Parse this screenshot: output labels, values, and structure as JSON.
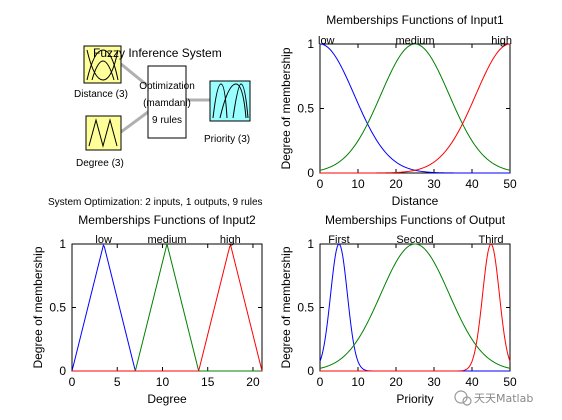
{
  "fis": {
    "title": "Fuzzy Inference System",
    "input1_label": "Distance (3)",
    "input2_label": "Degree (3)",
    "engine_line1": "Optimization",
    "engine_line2": "(mamdani)",
    "engine_line3": "9 rules",
    "output_label": "Priority (3)",
    "summary": "System Optimization: 2 inputs, 1 outputs, 9 rules",
    "colors": {
      "input_box": "#ffff99",
      "engine_box": "#ffffff",
      "output_box": "#99ffff"
    }
  },
  "watermark": "天天Matlab",
  "chart_data": [
    {
      "type": "line",
      "title": "Memberships Functions of Input1",
      "xlabel": "Distance",
      "ylabel": "Degree of membership",
      "xlim": [
        0,
        50
      ],
      "ylim": [
        0,
        1
      ],
      "xticks": [
        0,
        10,
        20,
        30,
        40,
        50
      ],
      "yticks": [
        0,
        0.5,
        1
      ],
      "grid": false,
      "series": [
        {
          "name": "low",
          "color": "#0000ff",
          "mf": "gauss",
          "center": 0,
          "sigma": 9
        },
        {
          "name": "medium",
          "color": "#008000",
          "mf": "gauss",
          "center": 25,
          "sigma": 9
        },
        {
          "name": "high",
          "color": "#ff0000",
          "mf": "gauss",
          "center": 50,
          "sigma": 9
        }
      ]
    },
    {
      "type": "line",
      "title": "Memberships Functions of Input2",
      "xlabel": "Degree",
      "ylabel": "Degree of membership",
      "xlim": [
        0,
        21
      ],
      "ylim": [
        0,
        1
      ],
      "xticks": [
        0,
        5,
        10,
        15,
        20
      ],
      "yticks": [
        0,
        0.5,
        1
      ],
      "grid": false,
      "series": [
        {
          "name": "low",
          "color": "#0000ff",
          "mf": "tri",
          "params": [
            0,
            3.5,
            7
          ]
        },
        {
          "name": "medium",
          "color": "#008000",
          "mf": "tri",
          "params": [
            7,
            10.5,
            14
          ]
        },
        {
          "name": "high",
          "color": "#ff0000",
          "mf": "tri",
          "params": [
            14,
            17.5,
            21
          ]
        }
      ]
    },
    {
      "type": "line",
      "title": "Memberships Functions of Output",
      "xlabel": "Priority",
      "ylabel": "Degree of membership",
      "xlim": [
        0,
        50
      ],
      "ylim": [
        0,
        1
      ],
      "xticks": [
        0,
        10,
        20,
        30,
        40,
        50
      ],
      "yticks": [
        0,
        0.5,
        1
      ],
      "grid": false,
      "series": [
        {
          "name": "First",
          "color": "#0000ff",
          "mf": "gauss",
          "center": 5,
          "sigma": 2.2
        },
        {
          "name": "Second",
          "color": "#008000",
          "mf": "gauss",
          "center": 25,
          "sigma": 9
        },
        {
          "name": "Third",
          "color": "#ff0000",
          "mf": "gauss",
          "center": 45,
          "sigma": 2.2
        }
      ]
    }
  ]
}
